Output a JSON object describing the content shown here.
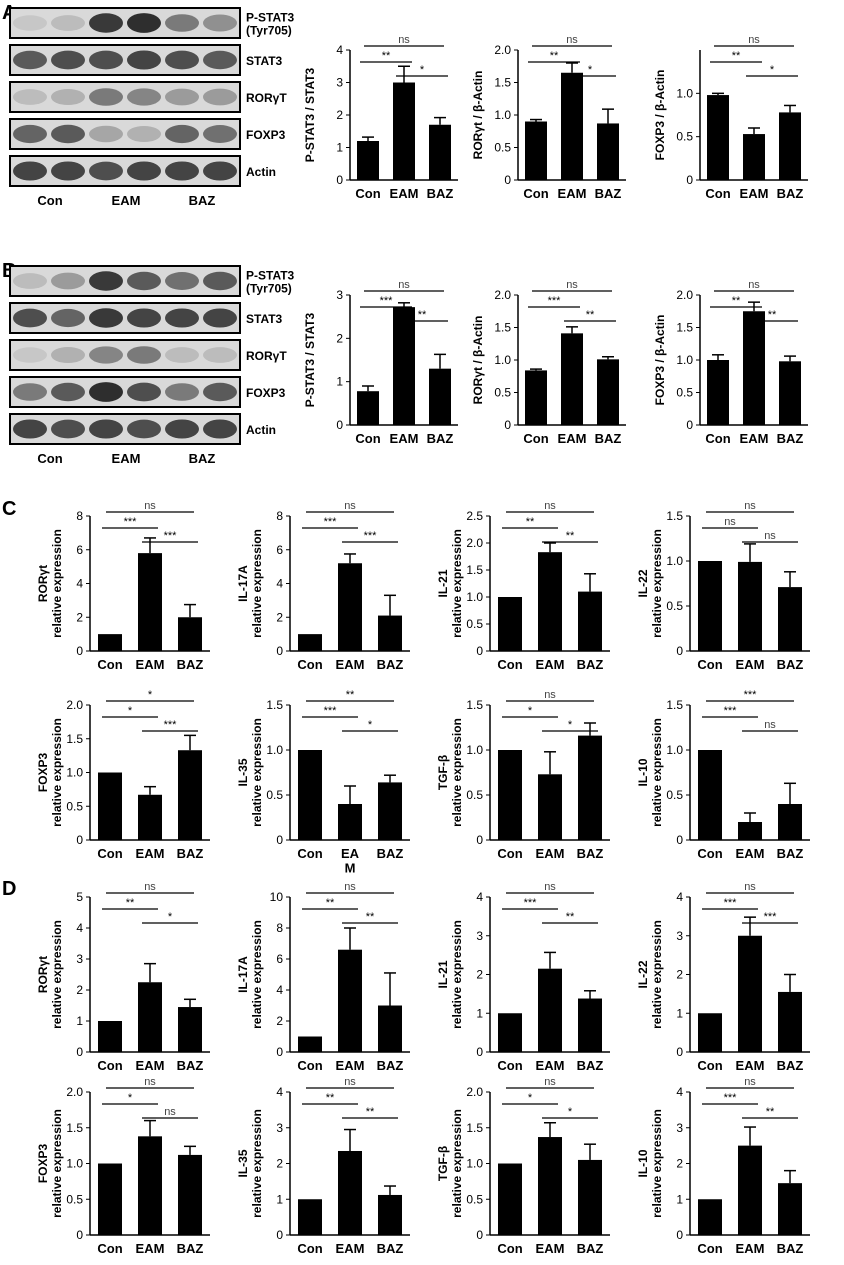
{
  "panels": {
    "A": {
      "letter": "A",
      "blot": {
        "bands": [
          "P-STAT3\n(Tyr705)",
          "STAT3",
          "RORγT",
          "FOXP3",
          "Actin"
        ],
        "groups": [
          "Con",
          "EAM",
          "BAZ"
        ],
        "intensity": [
          [
            0.25,
            0.3,
            0.9,
            0.95,
            0.6,
            0.5
          ],
          [
            0.75,
            0.8,
            0.8,
            0.85,
            0.8,
            0.75
          ],
          [
            0.3,
            0.35,
            0.6,
            0.55,
            0.45,
            0.45
          ],
          [
            0.7,
            0.75,
            0.4,
            0.35,
            0.7,
            0.65
          ],
          [
            0.85,
            0.85,
            0.8,
            0.85,
            0.85,
            0.85
          ]
        ]
      }
    },
    "B": {
      "letter": "B",
      "blot": {
        "bands": [
          "P-STAT3\n(Tyr705)",
          "STAT3",
          "RORγT",
          "FOXP3",
          "Actin"
        ],
        "groups": [
          "Con",
          "EAM",
          "BAZ"
        ],
        "intensity": [
          [
            0.3,
            0.45,
            0.9,
            0.75,
            0.65,
            0.75
          ],
          [
            0.8,
            0.7,
            0.9,
            0.85,
            0.85,
            0.85
          ],
          [
            0.25,
            0.35,
            0.55,
            0.6,
            0.3,
            0.3
          ],
          [
            0.6,
            0.75,
            0.95,
            0.8,
            0.6,
            0.75
          ],
          [
            0.85,
            0.8,
            0.85,
            0.8,
            0.85,
            0.85
          ]
        ]
      }
    },
    "C": {
      "letter": "C"
    },
    "D": {
      "letter": "D"
    }
  },
  "chart_data": [
    {
      "id": "A1",
      "type": "bar",
      "categories": [
        "Con",
        "EAM",
        "BAZ"
      ],
      "values": [
        1.2,
        3.0,
        1.7
      ],
      "errors": [
        0.12,
        0.5,
        0.22
      ],
      "ylabel": "P-STAT3 / STAT3",
      "ylim": [
        0,
        4
      ],
      "yticks": [
        "0",
        "1",
        "2",
        "3",
        "4"
      ],
      "sig": [
        {
          "from": 0,
          "to": 1,
          "label": "**"
        },
        {
          "from": 1,
          "to": 2,
          "label": "*"
        },
        {
          "from": 0,
          "to": 2,
          "label": "ns"
        }
      ]
    },
    {
      "id": "A2",
      "type": "bar",
      "categories": [
        "Con",
        "EAM",
        "BAZ"
      ],
      "values": [
        0.9,
        1.65,
        0.87
      ],
      "errors": [
        0.03,
        0.15,
        0.22
      ],
      "ylabel": "RORγt / β-Actin",
      "ylim": [
        0,
        2
      ],
      "yticks": [
        "0",
        "0.5",
        "1.0",
        "1.5",
        "2.0"
      ],
      "sig": [
        {
          "from": 0,
          "to": 1,
          "label": "**"
        },
        {
          "from": 1,
          "to": 2,
          "label": "*"
        },
        {
          "from": 0,
          "to": 2,
          "label": "ns"
        }
      ]
    },
    {
      "id": "A3",
      "type": "bar",
      "categories": [
        "Con",
        "EAM",
        "BAZ"
      ],
      "values": [
        0.98,
        0.53,
        0.78
      ],
      "errors": [
        0.02,
        0.07,
        0.08
      ],
      "ylabel": "FOXP3 / β-Actin",
      "ylim": [
        0,
        1.5
      ],
      "yticks": [
        "0",
        "0.5",
        "1.0"
      ],
      "sig": [
        {
          "from": 0,
          "to": 1,
          "label": "**"
        },
        {
          "from": 1,
          "to": 2,
          "label": "*"
        },
        {
          "from": 0,
          "to": 2,
          "label": "ns"
        }
      ]
    },
    {
      "id": "B1",
      "type": "bar",
      "categories": [
        "Con",
        "EAM",
        "BAZ"
      ],
      "values": [
        0.78,
        2.72,
        1.3
      ],
      "errors": [
        0.12,
        0.1,
        0.33
      ],
      "ylabel": "P-STAT3 / STAT3",
      "ylim": [
        0,
        3
      ],
      "yticks": [
        "0",
        "1",
        "2",
        "3"
      ],
      "sig": [
        {
          "from": 0,
          "to": 1,
          "label": "***"
        },
        {
          "from": 1,
          "to": 2,
          "label": "**"
        },
        {
          "from": 0,
          "to": 2,
          "label": "ns"
        }
      ]
    },
    {
      "id": "B2",
      "type": "bar",
      "categories": [
        "Con",
        "EAM",
        "BAZ"
      ],
      "values": [
        0.84,
        1.41,
        1.01
      ],
      "errors": [
        0.02,
        0.1,
        0.04
      ],
      "ylabel": "RORγt / β-Actin",
      "ylim": [
        0,
        2
      ],
      "yticks": [
        "0",
        "0.5",
        "1.0",
        "1.5",
        "2.0"
      ],
      "sig": [
        {
          "from": 0,
          "to": 1,
          "label": "***"
        },
        {
          "from": 1,
          "to": 2,
          "label": "**"
        },
        {
          "from": 0,
          "to": 2,
          "label": "ns"
        }
      ]
    },
    {
      "id": "B3",
      "type": "bar",
      "categories": [
        "Con",
        "EAM",
        "BAZ"
      ],
      "values": [
        1.0,
        1.75,
        0.98
      ],
      "errors": [
        0.08,
        0.14,
        0.08
      ],
      "ylabel": "FOXP3 / β-Actin",
      "ylim": [
        0,
        2
      ],
      "yticks": [
        "0",
        "0.5",
        "1.0",
        "1.5",
        "2.0"
      ],
      "sig": [
        {
          "from": 0,
          "to": 1,
          "label": "**"
        },
        {
          "from": 1,
          "to": 2,
          "label": "**"
        },
        {
          "from": 0,
          "to": 2,
          "label": "ns"
        }
      ]
    },
    {
      "id": "C1",
      "type": "bar",
      "categories": [
        "Con",
        "EAM",
        "BAZ"
      ],
      "values": [
        1.0,
        5.8,
        2.0
      ],
      "errors": [
        0,
        0.9,
        0.75
      ],
      "ylabel": "RORγt\nrelative expression",
      "ylim": [
        0,
        8
      ],
      "yticks": [
        "0",
        "2",
        "4",
        "6",
        "8"
      ],
      "sig": [
        {
          "from": 0,
          "to": 1,
          "label": "***"
        },
        {
          "from": 1,
          "to": 2,
          "label": "***"
        },
        {
          "from": 0,
          "to": 2,
          "label": "ns"
        }
      ]
    },
    {
      "id": "C2",
      "type": "bar",
      "categories": [
        "Con",
        "EAM",
        "BAZ"
      ],
      "values": [
        1.0,
        5.2,
        2.1
      ],
      "errors": [
        0,
        0.55,
        1.2
      ],
      "ylabel": "IL-17A\nrelative expression",
      "ylim": [
        0,
        8
      ],
      "yticks": [
        "0",
        "2",
        "4",
        "6",
        "8"
      ],
      "sig": [
        {
          "from": 0,
          "to": 1,
          "label": "***"
        },
        {
          "from": 1,
          "to": 2,
          "label": "***"
        },
        {
          "from": 0,
          "to": 2,
          "label": "ns"
        }
      ]
    },
    {
      "id": "C3",
      "type": "bar",
      "categories": [
        "Con",
        "EAM",
        "BAZ"
      ],
      "values": [
        1.0,
        1.83,
        1.1
      ],
      "errors": [
        0,
        0.17,
        0.33
      ],
      "ylabel": "IL-21\nrelative expression",
      "ylim": [
        0,
        2.5
      ],
      "yticks": [
        "0",
        "0.5",
        "1.0",
        "1.5",
        "2.0",
        "2.5"
      ],
      "sig": [
        {
          "from": 0,
          "to": 1,
          "label": "**"
        },
        {
          "from": 1,
          "to": 2,
          "label": "**"
        },
        {
          "from": 0,
          "to": 2,
          "label": "ns"
        }
      ]
    },
    {
      "id": "C4",
      "type": "bar",
      "categories": [
        "Con",
        "EAM",
        "BAZ"
      ],
      "values": [
        1.0,
        0.99,
        0.71
      ],
      "errors": [
        0,
        0.2,
        0.17
      ],
      "ylabel": "IL-22\nrelative expression",
      "ylim": [
        0,
        1.5
      ],
      "yticks": [
        "0",
        "0.5",
        "1.0",
        "1.5"
      ],
      "sig": [
        {
          "from": 0,
          "to": 1,
          "label": "ns"
        },
        {
          "from": 1,
          "to": 2,
          "label": "ns"
        },
        {
          "from": 0,
          "to": 2,
          "label": "ns"
        }
      ]
    },
    {
      "id": "C5",
      "type": "bar",
      "categories": [
        "Con",
        "EAM",
        "BAZ"
      ],
      "values": [
        1.0,
        0.67,
        1.33
      ],
      "errors": [
        0,
        0.12,
        0.22
      ],
      "ylabel": "FOXP3\nrelative expression",
      "ylim": [
        0,
        2
      ],
      "yticks": [
        "0",
        "0.5",
        "1.0",
        "1.5",
        "2.0"
      ],
      "sig": [
        {
          "from": 0,
          "to": 1,
          "label": "*"
        },
        {
          "from": 1,
          "to": 2,
          "label": "***"
        },
        {
          "from": 0,
          "to": 2,
          "label": "*"
        }
      ]
    },
    {
      "id": "C6",
      "type": "bar",
      "categories": [
        "Con",
        "EAM",
        "BAZ"
      ],
      "values": [
        1.0,
        0.4,
        0.64
      ],
      "errors": [
        0,
        0.2,
        0.08
      ],
      "ylabel": "IL-35\nrelative expression",
      "ylim": [
        0,
        1.5
      ],
      "yticks": [
        "0",
        "0.5",
        "1.0",
        "1.5"
      ],
      "sig": [
        {
          "from": 0,
          "to": 1,
          "label": "***"
        },
        {
          "from": 1,
          "to": 2,
          "label": "*"
        },
        {
          "from": 0,
          "to": 2,
          "label": "**"
        }
      ],
      "cat_override": [
        "Con",
        "EA\nM",
        "BAZ"
      ]
    },
    {
      "id": "C7",
      "type": "bar",
      "categories": [
        "Con",
        "EAM",
        "BAZ"
      ],
      "values": [
        1.0,
        0.73,
        1.16
      ],
      "errors": [
        0,
        0.25,
        0.14
      ],
      "ylabel": "TGF-β\nrelative expression",
      "ylim": [
        0,
        1.5
      ],
      "yticks": [
        "0",
        "0.5",
        "1.0",
        "1.5"
      ],
      "sig": [
        {
          "from": 0,
          "to": 1,
          "label": "*"
        },
        {
          "from": 1,
          "to": 2,
          "label": "*"
        },
        {
          "from": 0,
          "to": 2,
          "label": "ns"
        }
      ]
    },
    {
      "id": "C8",
      "type": "bar",
      "categories": [
        "Con",
        "EAM",
        "BAZ"
      ],
      "values": [
        1.0,
        0.2,
        0.4
      ],
      "errors": [
        0,
        0.1,
        0.23
      ],
      "ylabel": "IL-10\nrelative expression",
      "ylim": [
        0,
        1.5
      ],
      "yticks": [
        "0",
        "0.5",
        "1.0",
        "1.5"
      ],
      "sig": [
        {
          "from": 0,
          "to": 1,
          "label": "***"
        },
        {
          "from": 1,
          "to": 2,
          "label": "ns"
        },
        {
          "from": 0,
          "to": 2,
          "label": "***"
        }
      ]
    },
    {
      "id": "D1",
      "type": "bar",
      "categories": [
        "Con",
        "EAM",
        "BAZ"
      ],
      "values": [
        1.0,
        2.25,
        1.45
      ],
      "errors": [
        0,
        0.6,
        0.25
      ],
      "ylabel": "RORγt\nrelative expression",
      "ylim": [
        0,
        5
      ],
      "yticks": [
        "0",
        "1",
        "2",
        "3",
        "4",
        "5"
      ],
      "sig": [
        {
          "from": 0,
          "to": 1,
          "label": "**"
        },
        {
          "from": 1,
          "to": 2,
          "label": "*"
        },
        {
          "from": 0,
          "to": 2,
          "label": "ns"
        }
      ]
    },
    {
      "id": "D2",
      "type": "bar",
      "categories": [
        "Con",
        "EAM",
        "BAZ"
      ],
      "values": [
        1.0,
        6.6,
        3.0
      ],
      "errors": [
        0,
        1.4,
        2.1
      ],
      "ylabel": "IL-17A\nrelative expression",
      "ylim": [
        0,
        10
      ],
      "yticks": [
        "0",
        "2",
        "4",
        "6",
        "8",
        "10"
      ],
      "sig": [
        {
          "from": 0,
          "to": 1,
          "label": "**"
        },
        {
          "from": 1,
          "to": 2,
          "label": "**"
        },
        {
          "from": 0,
          "to": 2,
          "label": "ns"
        }
      ]
    },
    {
      "id": "D3",
      "type": "bar",
      "categories": [
        "Con",
        "EAM",
        "BAZ"
      ],
      "values": [
        1.0,
        2.15,
        1.38
      ],
      "errors": [
        0,
        0.42,
        0.2
      ],
      "ylabel": "IL-21\nrelative expression",
      "ylim": [
        0,
        4
      ],
      "yticks": [
        "0",
        "1",
        "2",
        "3",
        "4"
      ],
      "sig": [
        {
          "from": 0,
          "to": 1,
          "label": "***"
        },
        {
          "from": 1,
          "to": 2,
          "label": "**"
        },
        {
          "from": 0,
          "to": 2,
          "label": "ns"
        }
      ]
    },
    {
      "id": "D4",
      "type": "bar",
      "categories": [
        "Con",
        "EAM",
        "BAZ"
      ],
      "values": [
        1.0,
        3.0,
        1.55
      ],
      "errors": [
        0,
        0.48,
        0.45
      ],
      "ylabel": "IL-22\nrelative expression",
      "ylim": [
        0,
        4
      ],
      "yticks": [
        "0",
        "1",
        "2",
        "3",
        "4"
      ],
      "sig": [
        {
          "from": 0,
          "to": 1,
          "label": "***"
        },
        {
          "from": 1,
          "to": 2,
          "label": "***"
        },
        {
          "from": 0,
          "to": 2,
          "label": "ns"
        }
      ]
    },
    {
      "id": "D5",
      "type": "bar",
      "categories": [
        "Con",
        "EAM",
        "BAZ"
      ],
      "values": [
        1.0,
        1.38,
        1.12
      ],
      "errors": [
        0,
        0.22,
        0.12
      ],
      "ylabel": "FOXP3\nrelative expression",
      "ylim": [
        0,
        2
      ],
      "yticks": [
        "0",
        "0.5",
        "1.0",
        "1.5",
        "2.0"
      ],
      "sig": [
        {
          "from": 0,
          "to": 1,
          "label": "*"
        },
        {
          "from": 1,
          "to": 2,
          "label": "ns"
        },
        {
          "from": 0,
          "to": 2,
          "label": "ns"
        }
      ]
    },
    {
      "id": "D6",
      "type": "bar",
      "categories": [
        "Con",
        "EAM",
        "BAZ"
      ],
      "values": [
        1.0,
        2.35,
        1.12
      ],
      "errors": [
        0,
        0.6,
        0.25
      ],
      "ylabel": "IL-35\nrelative expression",
      "ylim": [
        0,
        4
      ],
      "yticks": [
        "0",
        "1",
        "2",
        "3",
        "4"
      ],
      "sig": [
        {
          "from": 0,
          "to": 1,
          "label": "**"
        },
        {
          "from": 1,
          "to": 2,
          "label": "**"
        },
        {
          "from": 0,
          "to": 2,
          "label": "ns"
        }
      ]
    },
    {
      "id": "D7",
      "type": "bar",
      "categories": [
        "Con",
        "EAM",
        "BAZ"
      ],
      "values": [
        1.0,
        1.37,
        1.05
      ],
      "errors": [
        0,
        0.2,
        0.22
      ],
      "ylabel": "TGF-β\nrelative expression",
      "ylim": [
        0,
        2
      ],
      "yticks": [
        "0",
        "0.5",
        "1.0",
        "1.5",
        "2.0"
      ],
      "sig": [
        {
          "from": 0,
          "to": 1,
          "label": "*"
        },
        {
          "from": 1,
          "to": 2,
          "label": "*"
        },
        {
          "from": 0,
          "to": 2,
          "label": "ns"
        }
      ]
    },
    {
      "id": "D8",
      "type": "bar",
      "categories": [
        "Con",
        "EAM",
        "BAZ"
      ],
      "values": [
        1.0,
        2.5,
        1.45
      ],
      "errors": [
        0,
        0.52,
        0.35
      ],
      "ylabel": "IL-10\nrelative expression",
      "ylim": [
        0,
        4
      ],
      "yticks": [
        "0",
        "1",
        "2",
        "3",
        "4"
      ],
      "sig": [
        {
          "from": 0,
          "to": 1,
          "label": "***"
        },
        {
          "from": 1,
          "to": 2,
          "label": "**"
        },
        {
          "from": 0,
          "to": 2,
          "label": "ns"
        }
      ]
    }
  ]
}
